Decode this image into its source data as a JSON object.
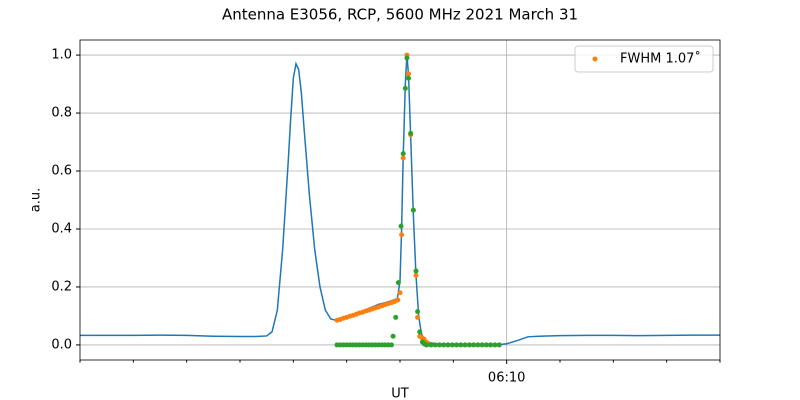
{
  "chart_data": {
    "type": "line",
    "title": "Antenna E3056, RCP, 5600 MHz 2021 March 31",
    "xlabel": "UT",
    "ylabel": "a.u.",
    "xlim": [
      2,
      14
    ],
    "ylim": [
      -0.052,
      1.052
    ],
    "xticks": [
      {
        "value": 10,
        "label": "06:10"
      }
    ],
    "xminorticks": [
      2,
      3,
      4,
      5,
      6,
      7,
      8,
      9,
      11,
      12,
      13,
      14
    ],
    "yticks": [
      {
        "value": 0,
        "label": "0.0"
      },
      0.2,
      0.4,
      0.6,
      0.8,
      {
        "value": 1,
        "label": "1.0"
      }
    ],
    "grid": true,
    "legend": "upper right",
    "series": [
      {
        "style": "line",
        "color": "#1f77b4",
        "x": [
          2.0,
          2.5,
          3.0,
          3.5,
          4.0,
          4.5,
          5.0,
          5.3,
          5.5,
          5.6,
          5.7,
          5.8,
          5.9,
          5.95,
          6.0,
          6.05,
          6.1,
          6.15,
          6.2,
          6.3,
          6.4,
          6.5,
          6.6,
          6.7,
          6.8,
          7.0,
          7.2,
          7.4,
          7.6,
          7.8,
          7.95,
          8.0,
          8.03,
          8.06,
          8.1,
          8.13,
          8.16,
          8.2,
          8.25,
          8.3,
          8.35,
          8.4,
          8.45,
          8.5,
          8.7,
          9.0,
          9.5,
          9.9,
          10.0,
          10.2,
          10.4,
          10.6,
          11.0,
          11.5,
          12.0,
          12.5,
          13.0,
          13.5,
          14.0
        ],
        "values": [
          0.033,
          0.033,
          0.033,
          0.034,
          0.033,
          0.03,
          0.029,
          0.029,
          0.031,
          0.045,
          0.12,
          0.33,
          0.62,
          0.78,
          0.92,
          0.97,
          0.95,
          0.87,
          0.75,
          0.52,
          0.33,
          0.2,
          0.12,
          0.09,
          0.085,
          0.095,
          0.11,
          0.125,
          0.14,
          0.15,
          0.16,
          0.22,
          0.4,
          0.65,
          0.9,
          1.0,
          0.93,
          0.72,
          0.45,
          0.24,
          0.1,
          0.04,
          0.02,
          0.01,
          0.003,
          0.002,
          0.002,
          0.002,
          0.004,
          0.015,
          0.028,
          0.03,
          0.032,
          0.033,
          0.033,
          0.032,
          0.033,
          0.034,
          0.034
        ]
      },
      {
        "style": "points",
        "color": "#ff7f0e",
        "name": "FWHM 1.07˚",
        "x": [
          6.82,
          6.88,
          6.94,
          7.0,
          7.06,
          7.12,
          7.18,
          7.24,
          7.3,
          7.36,
          7.42,
          7.48,
          7.54,
          7.6,
          7.66,
          7.72,
          7.78,
          7.84,
          7.9,
          7.96,
          8.0,
          8.03,
          8.06,
          8.13,
          8.16,
          8.2,
          8.25,
          8.3,
          8.33,
          8.37,
          8.41,
          8.45,
          8.49,
          8.53
        ],
        "values": [
          0.085,
          0.088,
          0.092,
          0.095,
          0.099,
          0.102,
          0.106,
          0.11,
          0.113,
          0.117,
          0.12,
          0.124,
          0.128,
          0.131,
          0.135,
          0.139,
          0.142,
          0.146,
          0.15,
          0.155,
          0.18,
          0.38,
          0.645,
          1.0,
          0.935,
          0.725,
          0.465,
          0.24,
          0.095,
          0.03,
          0.025,
          0.02,
          0.01,
          0.005
        ]
      },
      {
        "style": "points",
        "color": "#2ca02c",
        "x": [
          6.82,
          6.88,
          6.94,
          7.0,
          7.06,
          7.12,
          7.18,
          7.24,
          7.3,
          7.36,
          7.42,
          7.48,
          7.54,
          7.6,
          7.66,
          7.72,
          7.78,
          7.84,
          7.87,
          7.92,
          7.97,
          8.02,
          8.06,
          8.1,
          8.13,
          8.16,
          8.2,
          8.25,
          8.3,
          8.33,
          8.37,
          8.42,
          8.46,
          8.5,
          8.58,
          8.66,
          8.74,
          8.82,
          8.9,
          8.98,
          9.06,
          9.14,
          9.22,
          9.3,
          9.38,
          9.46,
          9.54,
          9.62,
          9.7,
          9.78,
          9.86
        ],
        "values": [
          0,
          0,
          0,
          0,
          0,
          0,
          0,
          0,
          0,
          0,
          0,
          0,
          0,
          0,
          0,
          0,
          0,
          0,
          0.03,
          0.095,
          0.215,
          0.41,
          0.66,
          0.885,
          0.99,
          0.92,
          0.73,
          0.465,
          0.255,
          0.115,
          0.045,
          0.01,
          0.003,
          0,
          0,
          0,
          0,
          0,
          0,
          0,
          0,
          0,
          0,
          0,
          0,
          0,
          0,
          0,
          0,
          0,
          0
        ]
      }
    ]
  }
}
